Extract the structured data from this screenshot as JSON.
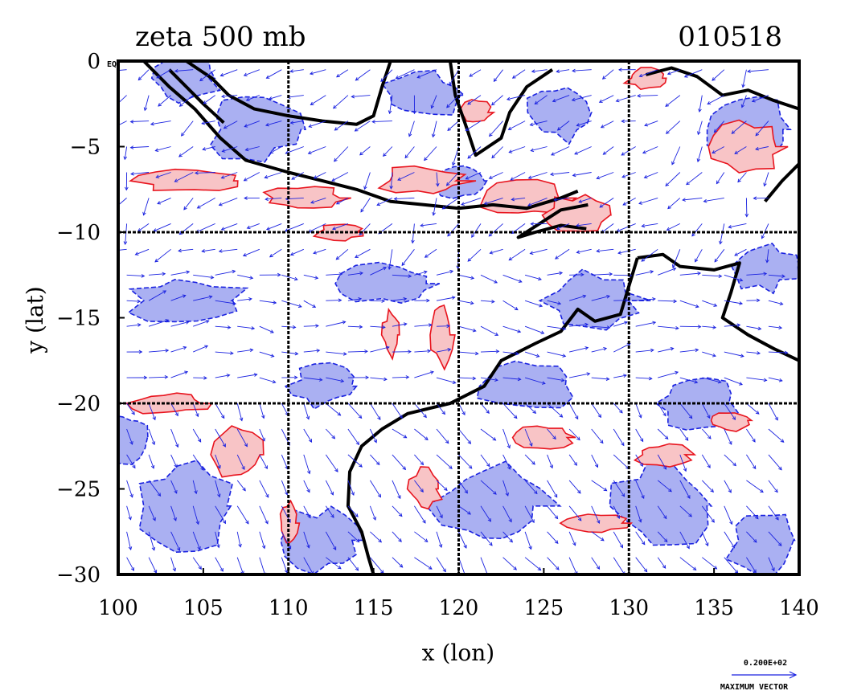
{
  "chart_data": {
    "type": "contour-vector",
    "title": "zeta 500 mb",
    "date_label": "010518",
    "xlabel": "x (lon)",
    "ylabel": "y (lat)",
    "xlim": [
      100,
      140
    ],
    "ylim": [
      -30,
      0
    ],
    "x_ticks": [
      100,
      105,
      110,
      115,
      120,
      125,
      130,
      135,
      140
    ],
    "x_tick_labels": [
      "100",
      "105",
      "110",
      "115",
      "120",
      "125",
      "130",
      "135",
      "140"
    ],
    "y_ticks": [
      0,
      -5,
      -10,
      -15,
      -20,
      -25,
      -30
    ],
    "y_tick_labels": [
      "0",
      "−5",
      "−10",
      "−15",
      "−20",
      "−25",
      "−30"
    ],
    "y0_suffix": "EQ",
    "gridlines_x": [
      110,
      120,
      130
    ],
    "gridlines_y": [
      -10,
      -20
    ],
    "grid": true,
    "vector_key_value": "0.200E+02",
    "vector_key_label": "MAXIMUM VECTOR",
    "colors": {
      "positive_fill": "#f8c4c6",
      "positive_line": "#e8141e",
      "negative_fill": "#aab0f2",
      "negative_line": "#1a22e0",
      "vector": "#1a22e0",
      "coastline": "#000000"
    }
  }
}
